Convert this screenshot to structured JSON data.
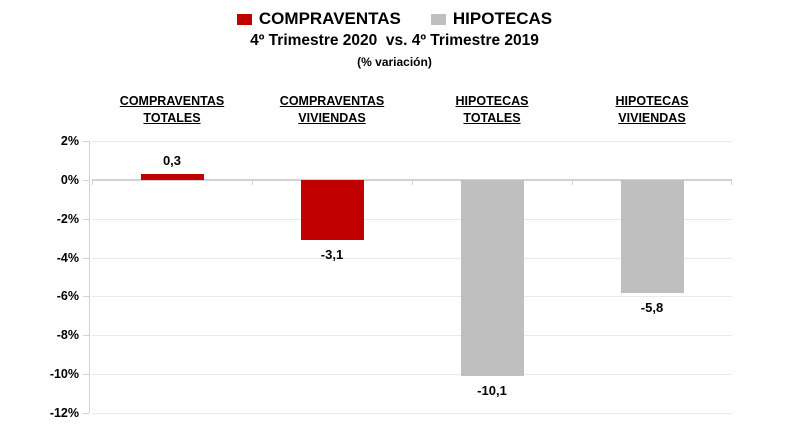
{
  "legend": {
    "items": [
      {
        "label": "COMPRAVENTAS",
        "color": "#C00000"
      },
      {
        "label": "HIPOTECAS",
        "color": "#BFBFBF"
      }
    ]
  },
  "title": "4º Trimestre 2020  vs. 4º Trimestre 2019",
  "subtitle": "(% variación)",
  "chart_data": {
    "type": "bar",
    "title": "4º Trimestre 2020  vs. 4º Trimestre 2019",
    "subtitle": "(% variación)",
    "categories": [
      "COMPRAVENTAS\nTOTALES",
      "COMPRAVENTAS\nVIVIENDAS",
      "HIPOTECAS\nTOTALES",
      "HIPOTECAS\nVIVIENDAS"
    ],
    "values": [
      0.3,
      -3.1,
      -10.1,
      -5.8
    ],
    "value_labels": [
      "0,3",
      "-3,1",
      "-10,1",
      "-5,8"
    ],
    "bar_colors": [
      "#C00000",
      "#C00000",
      "#BFBFBF",
      "#BFBFBF"
    ],
    "series_of": [
      "COMPRAVENTAS",
      "COMPRAVENTAS",
      "HIPOTECAS",
      "HIPOTECAS"
    ],
    "xlabel": "",
    "ylabel": "",
    "ylim": [
      -12,
      2
    ],
    "ytick_step": 2,
    "ytick_labels": [
      "2%",
      "0%",
      "-2%",
      "-4%",
      "-6%",
      "-8%",
      "-10%",
      "-12%"
    ],
    "grid": true,
    "legend_position": "top-center"
  },
  "colors": {
    "compraventas": "#C00000",
    "hipotecas": "#BFBFBF",
    "gridline": "#E9E9E9",
    "axis": "#D2D2D2",
    "text": "#000000",
    "background": "#FFFFFF"
  }
}
